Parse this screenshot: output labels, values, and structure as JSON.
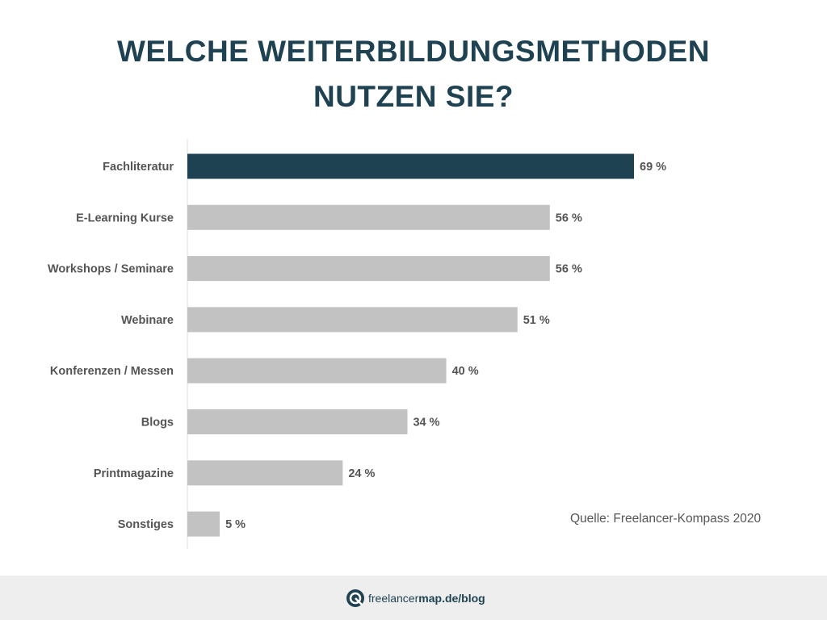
{
  "title": {
    "line1": "WELCHE WEITERBILDUNGSMETHODEN",
    "line2": "NUTZEN SIE?"
  },
  "chart_data": {
    "type": "bar",
    "orientation": "horizontal",
    "categories": [
      "Fachliteratur",
      "E-Learning Kurse",
      "Workshops / Seminare",
      "Webinare",
      "Konferenzen / Messen",
      "Blogs",
      "Printmagazine",
      "Sonstiges"
    ],
    "values": [
      69,
      56,
      56,
      51,
      40,
      34,
      24,
      5
    ],
    "value_labels": [
      "69 %",
      "56 %",
      "56 %",
      "51 %",
      "40 %",
      "34 %",
      "24 %",
      "5 %"
    ],
    "unit": "%",
    "xlim": [
      0,
      100
    ],
    "grid": false,
    "highlight_index": 0,
    "colors": {
      "highlight": "#1f4252",
      "default": "#c2c2c2",
      "axis": "#dddddd"
    }
  },
  "source": "Quelle: Freelancer-Kompass 2020",
  "footer": {
    "brand_icon": "freelancermap-logo-icon",
    "brand_text_light": "freelancer",
    "brand_text_bold": "map",
    "brand_text_suffix": ".de/blog"
  }
}
